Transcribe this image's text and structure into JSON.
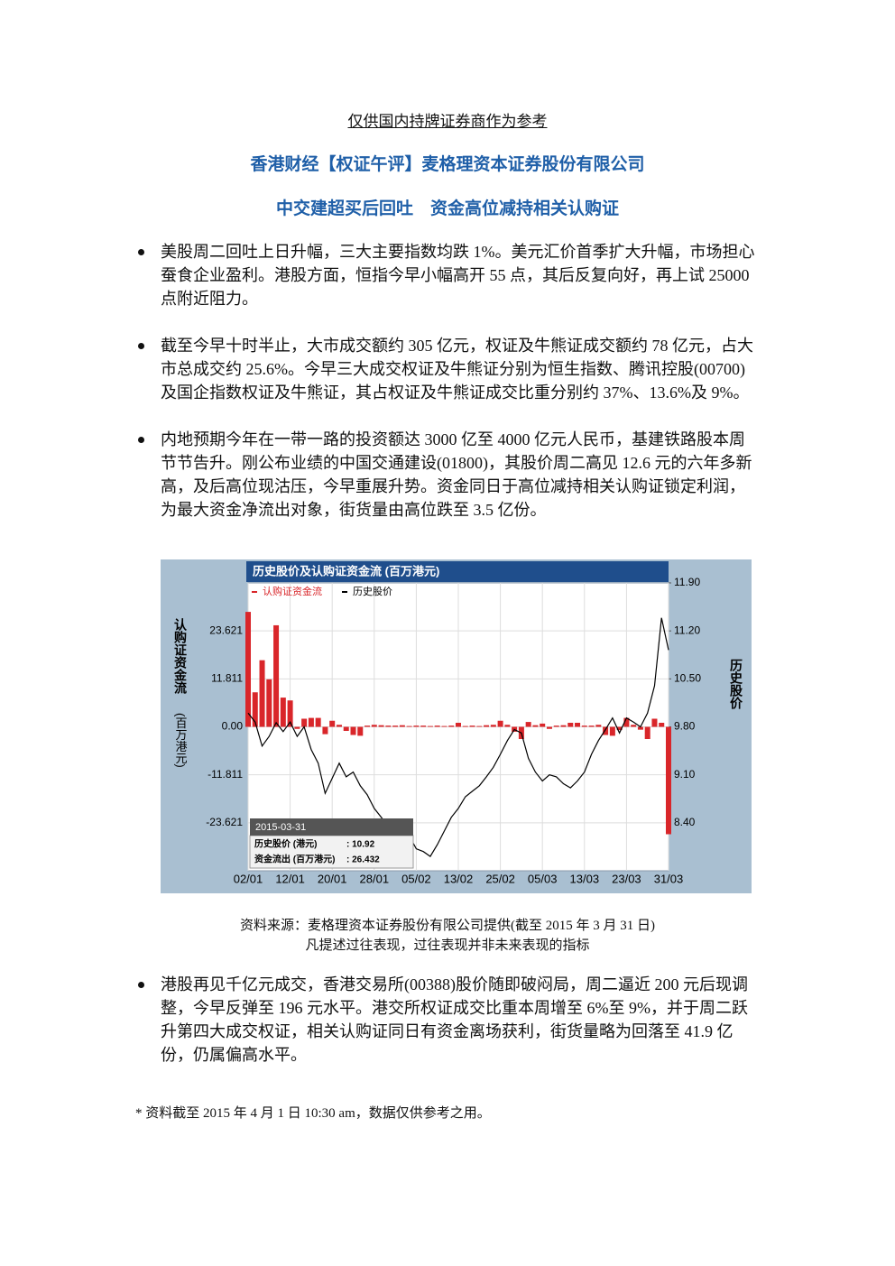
{
  "header": {
    "note": "仅供国内持牌证券商作为参考",
    "title": "香港财经【权证午评】麦格理资本证券股份有限公司",
    "subtitle": "中交建超买后回吐　资金高位减持相关认购证"
  },
  "bullets": [
    "美股周二回吐上日升幅，三大主要指数均跌 1%。美元汇价首季扩大升幅，市场担心蚕食企业盈利。港股方面，恒指今早小幅高开 55 点，其后反复向好，再上试 25000 点附近阻力。",
    "截至今早十时半止，大市成交额约 305 亿元，权证及牛熊证成交额约 78 亿元，占大市总成交约 25.6%。今早三大成交权证及牛熊证分别为恒生指数、腾讯控股(00700)及国企指数权证及牛熊证，其占权证及牛熊证成交比重分别约 37%、13.6%及 9%。",
    "内地预期今年在一带一路的投资额达 3000 亿至 4000 亿元人民币，基建铁路股本周节节告升。刚公布业绩的中国交通建设(01800)，其股价周二高见 12.6 元的六年多新高，及后高位现沽压，今早重展升势。资金同日于高位减持相关认购证锁定利润，为最大资金净流出对象，街货量由高位跌至 3.5 亿份。"
  ],
  "chart_data": {
    "type": "bar",
    "title": "历史股价及认购证资金流 (百万港元)",
    "y_label": "认购证资金流",
    "y_label_unit": "(百万港元)",
    "y2_label": "历史股价",
    "categories": [
      "02/01",
      null,
      null,
      null,
      null,
      null,
      "12/01",
      null,
      null,
      null,
      null,
      null,
      "20/01",
      null,
      null,
      null,
      null,
      null,
      "28/01",
      null,
      null,
      null,
      null,
      null,
      "05/02",
      null,
      null,
      null,
      null,
      null,
      "13/02",
      null,
      null,
      null,
      null,
      null,
      "25/02",
      null,
      null,
      null,
      null,
      null,
      "05/03",
      null,
      null,
      null,
      null,
      null,
      "13/03",
      null,
      null,
      null,
      null,
      null,
      "23/03",
      null,
      null,
      null,
      null,
      null,
      "31/03"
    ],
    "series": [
      {
        "name": "认购证资金流",
        "color": "#d9262a",
        "type": "bar",
        "values": [
          28.3,
          8.5,
          16.4,
          11.7,
          25.0,
          7.2,
          6.5,
          -0.5,
          2.0,
          2.2,
          2.2,
          -1.8,
          1.5,
          0.5,
          -1.0,
          -2.0,
          -2.2,
          0.3,
          0.5,
          0.4,
          0.3,
          0.3,
          0.4,
          0.2,
          0.3,
          0.3,
          0.2,
          0.3,
          0.2,
          0.3,
          1.0,
          0.2,
          0.3,
          0.2,
          0.4,
          0.5,
          1.5,
          0.5,
          -1.2,
          -3.0,
          1.2,
          0.4,
          0.8,
          -0.5,
          0.3,
          0.4,
          1.0,
          1.0,
          0.3,
          0.3,
          0.5,
          -2.0,
          -2.2,
          -0.8,
          2.2,
          0.5,
          -0.7,
          -3.0,
          2.0,
          1.0,
          -26.432
        ]
      },
      {
        "name": "历史股价",
        "color": "#000000",
        "type": "line",
        "axis": "y2",
        "values": [
          10.0,
          9.87,
          9.52,
          9.66,
          9.86,
          9.73,
          9.87,
          9.66,
          9.8,
          9.47,
          9.27,
          8.83,
          9.05,
          9.27,
          9.07,
          9.14,
          8.94,
          8.81,
          8.61,
          8.48,
          8.35,
          8.21,
          8.15,
          8.21,
          8.02,
          7.98,
          7.91,
          8.08,
          8.28,
          8.48,
          8.61,
          8.78,
          8.86,
          8.94,
          9.07,
          9.21,
          9.4,
          9.6,
          9.76,
          9.71,
          9.34,
          9.14,
          9.01,
          9.1,
          9.07,
          8.97,
          8.91,
          9.01,
          9.14,
          9.4,
          9.6,
          9.76,
          9.93,
          9.71,
          9.93,
          9.87,
          9.8,
          10.0,
          10.4,
          11.39,
          10.92
        ]
      }
    ],
    "ylim": [
      -35.43,
      35.43
    ],
    "yticks": [
      -23.621,
      -11.811,
      {
        "value": 0,
        "label": "0.00"
      },
      11.811,
      23.621
    ],
    "y2lim": [
      7.7,
      11.9
    ],
    "y2ticks": [
      {
        "value": 8.4,
        "label": "8.40"
      },
      {
        "value": 9.1,
        "label": "9.10"
      },
      {
        "value": 9.8,
        "label": "9.80"
      },
      {
        "value": 10.5,
        "label": "10.50"
      },
      {
        "value": 11.2,
        "label": "11.20"
      },
      {
        "value": 11.9,
        "label": "11.90"
      }
    ],
    "grid": true,
    "legend": "top-left",
    "tooltip": {
      "title": "2015-03-31",
      "rows": [
        {
          "label": "历史股价 (港元)",
          "value_label": ": 10.92"
        },
        {
          "label": "资金流出 (百万港元)",
          "value_label": ": 26.432"
        }
      ]
    }
  },
  "caption": [
    "资料来源：麦格理资本证券股份有限公司提供(截至 2015 年 3 月 31 日)",
    "凡提述过往表现，过往表现并非未来表现的指标"
  ],
  "bullets_after": [
    "港股再见千亿元成交，香港交易所(00388)股价随即破闷局，周二逼近 200 元后现调整，今早反弹至 196 元水平。港交所权证成交比重本周增至 6%至 9%，并于周二跃升第四大成交权证，相关认购证同日有资金离场获利，街货量略为回落至 41.9 亿份，仍属偏高水平。"
  ],
  "footnote": "*  资料截至 2015 年 4 月 1 日 10:30 am，数据仅供参考之用。"
}
